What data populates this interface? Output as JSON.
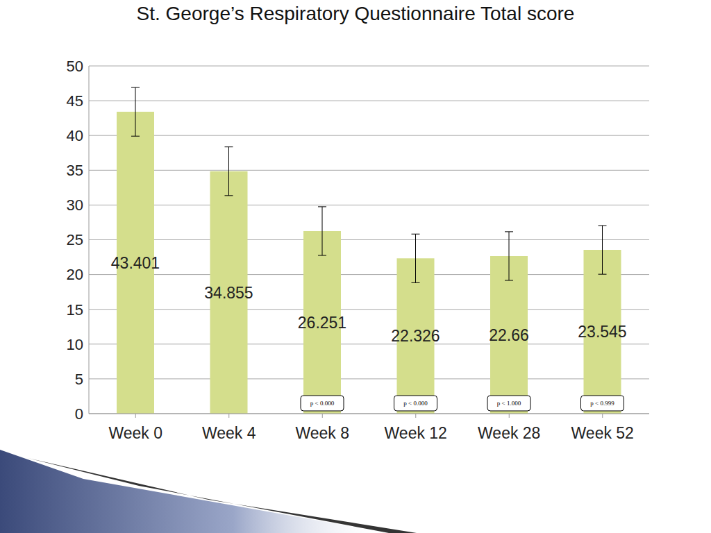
{
  "chart_data": {
    "type": "bar",
    "title": "St. George’s Respiratory Questionnaire  Total score",
    "categories": [
      "Week 0",
      "Week 4",
      "Week 8",
      "Week 12",
      "Week 28",
      "Week 52"
    ],
    "values": [
      43.401,
      34.855,
      26.251,
      22.326,
      22.66,
      23.545
    ],
    "errors": [
      3.5,
      3.5,
      3.5,
      3.5,
      3.5,
      3.5
    ],
    "annotations": [
      null,
      null,
      "p < 0.000",
      "p < 0.000",
      "p < 1.000",
      "p < 0.999"
    ],
    "color": "#d4de8c",
    "ylim": [
      0,
      50
    ],
    "yticks": [
      0,
      5,
      10,
      15,
      20,
      25,
      30,
      35,
      40,
      45,
      50
    ],
    "grid": true,
    "data_labels": true
  }
}
